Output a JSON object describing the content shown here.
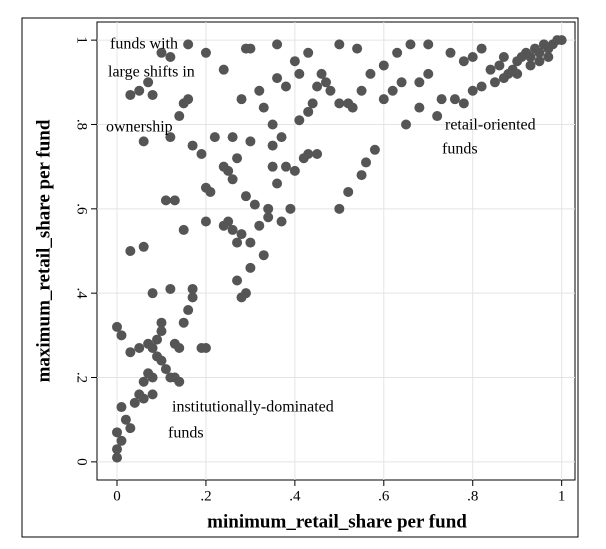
{
  "chart_data": {
    "type": "scatter",
    "x_label": "minimum_retail_share per fund",
    "y_label": "maximum_retail_share per fund",
    "color": "#555555",
    "grid": true,
    "xlim": [
      -0.045,
      1.03
    ],
    "ylim": [
      -0.043,
      1.043
    ],
    "xticks": [
      0,
      {
        "value": 0.2,
        "label": ".2"
      },
      {
        "value": 0.4,
        "label": ".4"
      },
      {
        "value": 0.6,
        "label": ".6"
      },
      {
        "value": 0.8,
        "label": ".8"
      },
      1
    ],
    "yticks": [
      0,
      {
        "value": 0.2,
        "label": ".2"
      },
      {
        "value": 0.4,
        "label": ".4"
      },
      {
        "value": 0.6,
        "label": ".6"
      },
      {
        "value": 0.8,
        "label": ".8"
      },
      1
    ],
    "annotations": [
      [
        "funds with",
        "large shifts in",
        "ownership"
      ],
      [
        "retail-oriented",
        "funds"
      ],
      [
        "institutionally-dominated",
        "funds"
      ]
    ],
    "x": [
      0,
      0,
      0.01,
      0,
      0.02,
      0.01,
      0.03,
      0,
      0.01,
      0.03,
      0.04,
      0.05,
      0.06,
      0.07,
      0.08,
      0.06,
      0.08,
      0.05,
      0.07,
      0.08,
      0.09,
      0.1,
      0.1,
      0.09,
      0.1,
      0.11,
      0.12,
      0.13,
      0.14,
      0.13,
      0.14,
      0.15,
      0.16,
      0.17,
      0.17,
      0.19,
      0.2,
      0.12,
      0.08,
      0.03,
      0.06,
      0.11,
      0.13,
      0.15,
      0.2,
      0.21,
      0.24,
      0.25,
      0.26,
      0.27,
      0.28,
      0.27,
      0.28,
      0.29,
      0.3,
      0.33,
      0.3,
      0.32,
      0.34,
      0.36,
      0.38,
      0.35,
      0.27,
      0.25,
      0.29,
      0.31,
      0.34,
      0.37,
      0.39,
      0.4,
      0.42,
      0.43,
      0.45,
      0.41,
      0.43,
      0.44,
      0.45,
      0.46,
      0.47,
      0.48,
      0.5,
      0.52,
      0.53,
      0.5,
      0.52,
      0.55,
      0.56,
      0.58,
      0.55,
      0.57,
      0.6,
      0.62,
      0.64,
      0.65,
      0.68,
      0.68,
      0.7,
      0.72,
      0.73,
      0.6,
      0.63,
      0.66,
      0.7,
      0.75,
      0.78,
      0.8,
      0.82,
      0.84,
      0.85,
      0.86,
      0.87,
      0.88,
      0.89,
      0.9,
      0.91,
      0.92,
      0.93,
      0.94,
      0.95,
      0.96,
      0.97,
      0.98,
      0.99,
      1,
      0.9,
      0.87,
      0.95,
      0.93,
      0.97,
      0.8,
      0.82,
      0.78,
      0.76,
      0.1,
      0.12,
      0.16,
      0.2,
      0.3,
      0.29,
      0.36,
      0.43,
      0.5,
      0.54,
      0.05,
      0.07,
      0.08,
      0.03,
      0.15,
      0.16,
      0.14,
      0.17,
      0.19,
      0.2,
      0.06,
      0.12,
      0.24,
      0.28,
      0.32,
      0.33,
      0.35,
      0.37,
      0.36,
      0.4,
      0.41,
      0.38,
      0.35,
      0.3,
      0.26,
      0.22,
      0.26,
      0.24
    ],
    "values": [
      0.01,
      0.03,
      0.05,
      0.07,
      0.1,
      0.13,
      0.08,
      0.32,
      0.3,
      0.26,
      0.14,
      0.16,
      0.19,
      0.21,
      0.2,
      0.15,
      0.16,
      0.27,
      0.28,
      0.27,
      0.29,
      0.31,
      0.33,
      0.25,
      0.24,
      0.22,
      0.2,
      0.2,
      0.19,
      0.28,
      0.27,
      0.33,
      0.36,
      0.39,
      0.41,
      0.27,
      0.27,
      0.41,
      0.4,
      0.5,
      0.51,
      0.62,
      0.62,
      0.55,
      0.57,
      0.64,
      0.56,
      0.57,
      0.55,
      0.52,
      0.54,
      0.43,
      0.39,
      0.4,
      0.46,
      0.49,
      0.52,
      0.56,
      0.6,
      0.66,
      0.7,
      0.7,
      0.72,
      0.69,
      0.63,
      0.61,
      0.58,
      0.57,
      0.6,
      0.69,
      0.72,
      0.73,
      0.73,
      0.81,
      0.83,
      0.85,
      0.89,
      0.92,
      0.9,
      0.88,
      0.85,
      0.85,
      0.84,
      0.6,
      0.64,
      0.68,
      0.71,
      0.74,
      0.88,
      0.92,
      0.86,
      0.88,
      0.9,
      0.8,
      0.84,
      0.9,
      0.92,
      0.82,
      0.86,
      0.94,
      0.97,
      0.99,
      0.99,
      0.97,
      0.95,
      0.96,
      0.98,
      0.93,
      0.9,
      0.94,
      0.96,
      0.92,
      0.93,
      0.95,
      0.96,
      0.97,
      0.96,
      0.98,
      0.97,
      0.99,
      0.98,
      0.99,
      1,
      1,
      0.92,
      0.91,
      0.95,
      0.94,
      0.96,
      0.88,
      0.89,
      0.85,
      0.86,
      0.97,
      0.96,
      0.99,
      0.97,
      0.98,
      0.98,
      0.99,
      0.97,
      0.99,
      0.98,
      0.88,
      0.9,
      0.87,
      0.87,
      0.85,
      0.86,
      0.82,
      0.75,
      0.73,
      0.65,
      0.76,
      0.77,
      0.93,
      0.86,
      0.88,
      0.84,
      0.8,
      0.77,
      0.91,
      0.95,
      0.92,
      0.89,
      0.75,
      0.76,
      0.77,
      0.77,
      0.67,
      0.7
    ]
  }
}
